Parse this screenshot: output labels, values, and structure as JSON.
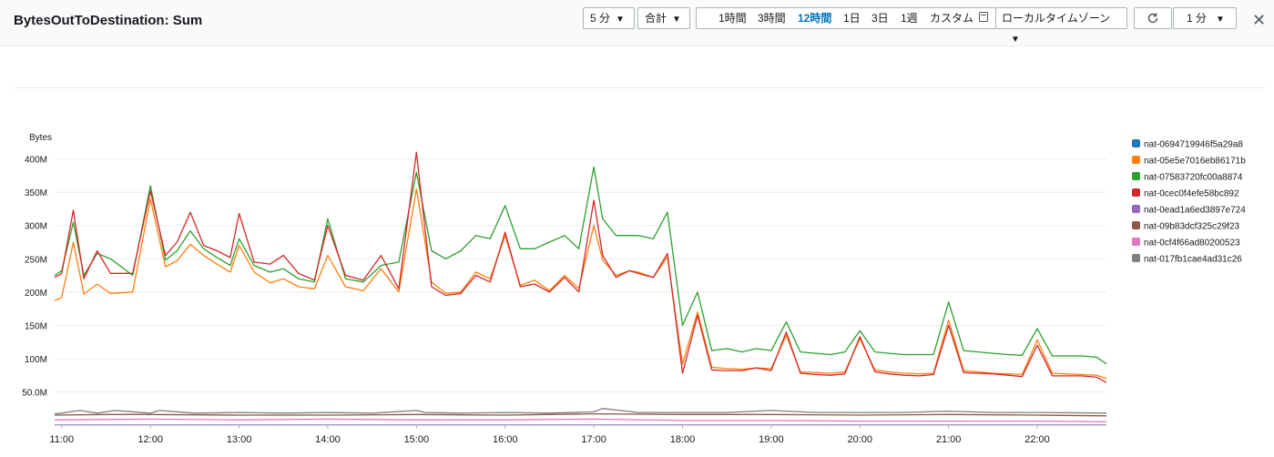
{
  "header": {
    "title": "BytesOutToDestination: Sum",
    "period": "5 分",
    "statistic": "合計",
    "ranges": [
      "1時間",
      "3時間",
      "12時間",
      "1日",
      "3日",
      "1週",
      "カスタム"
    ],
    "active_range": "12時間",
    "timezone": "ローカルタイムゾーン",
    "refresh_interval": "1 分"
  },
  "icons": {
    "refresh": "refresh-icon",
    "calendar": "calendar-icon",
    "close": "close-icon",
    "dropdown": "caret-down-icon"
  },
  "chart_data": {
    "type": "line",
    "ylabel": "Bytes",
    "ylim": [
      0,
      420
    ],
    "y_unit": "MB",
    "yticks": [
      50,
      100,
      150,
      200,
      250,
      300,
      350,
      400
    ],
    "ytick_labels": [
      "50.0M",
      "100M",
      "150M",
      "200M",
      "250M",
      "300M",
      "350M",
      "400M"
    ],
    "xlim": [
      10.92,
      22.78
    ],
    "x_unit": "hour of day",
    "xticks": [
      11,
      12,
      13,
      14,
      15,
      16,
      17,
      18,
      19,
      20,
      21,
      22
    ],
    "xtick_labels": [
      "11:00",
      "12:00",
      "13:00",
      "14:00",
      "15:00",
      "16:00",
      "17:00",
      "18:00",
      "19:00",
      "20:00",
      "21:00",
      "22:00"
    ],
    "grid": true,
    "legend_position": "right",
    "series": [
      {
        "name": "nat-0694719946f5a29a8",
        "color": "#1f77b4",
        "x": [
          10.92,
          22.78
        ],
        "y": [
          0.2,
          0.2
        ]
      },
      {
        "name": "nat-05e5e7016eb86171b",
        "color": "#ff7f0e",
        "x": [
          10.92,
          11.0,
          11.13,
          11.25,
          11.4,
          11.55,
          11.8,
          12.0,
          12.17,
          12.3,
          12.45,
          12.6,
          12.75,
          12.9,
          13.0,
          13.17,
          13.35,
          13.5,
          13.67,
          13.85,
          14.0,
          14.2,
          14.4,
          14.6,
          14.8,
          15.0,
          15.17,
          15.33,
          15.5,
          15.67,
          15.83,
          16.0,
          16.17,
          16.33,
          16.5,
          16.67,
          16.83,
          17.0,
          17.1,
          17.25,
          17.4,
          17.5,
          17.67,
          17.83,
          18.0,
          18.17,
          18.33,
          18.5,
          18.67,
          18.83,
          19.0,
          19.17,
          19.33,
          19.5,
          19.67,
          19.83,
          20.0,
          20.17,
          20.33,
          20.5,
          20.67,
          20.83,
          21.0,
          21.17,
          21.33,
          21.5,
          21.67,
          21.83,
          22.0,
          22.17,
          22.33,
          22.5,
          22.67,
          22.78
        ],
        "y": [
          187,
          192,
          275,
          197,
          212,
          198,
          200,
          340,
          238,
          247,
          272,
          255,
          242,
          230,
          270,
          230,
          214,
          220,
          208,
          205,
          255,
          208,
          202,
          235,
          200,
          355,
          215,
          198,
          200,
          230,
          220,
          285,
          210,
          218,
          202,
          225,
          205,
          300,
          248,
          225,
          232,
          230,
          222,
          253,
          92,
          170,
          87,
          85,
          84,
          86,
          85,
          135,
          80,
          79,
          78,
          80,
          130,
          83,
          80,
          78,
          77,
          78,
          158,
          82,
          80,
          78,
          77,
          76,
          128,
          78,
          77,
          76,
          75,
          70
        ]
      },
      {
        "name": "nat-07583720fc00a8874",
        "color": "#2ca02c",
        "x": [
          10.92,
          11.0,
          11.13,
          11.25,
          11.4,
          11.55,
          11.8,
          12.0,
          12.17,
          12.3,
          12.45,
          12.6,
          12.75,
          12.9,
          13.0,
          13.17,
          13.35,
          13.5,
          13.67,
          13.85,
          14.0,
          14.2,
          14.4,
          14.6,
          14.8,
          15.0,
          15.17,
          15.33,
          15.5,
          15.67,
          15.83,
          16.0,
          16.17,
          16.33,
          16.5,
          16.67,
          16.83,
          17.0,
          17.1,
          17.25,
          17.4,
          17.5,
          17.67,
          17.83,
          18.0,
          18.17,
          18.33,
          18.5,
          18.67,
          18.83,
          19.0,
          19.17,
          19.33,
          19.5,
          19.67,
          19.83,
          20.0,
          20.17,
          20.33,
          20.5,
          20.67,
          20.83,
          21.0,
          21.17,
          21.33,
          21.5,
          21.67,
          21.83,
          22.0,
          22.17,
          22.33,
          22.5,
          22.67,
          22.78
        ],
        "y": [
          225,
          232,
          305,
          225,
          258,
          250,
          225,
          360,
          248,
          262,
          292,
          265,
          252,
          240,
          280,
          240,
          230,
          235,
          220,
          215,
          310,
          220,
          215,
          240,
          245,
          380,
          262,
          250,
          262,
          285,
          280,
          330,
          265,
          265,
          275,
          285,
          265,
          388,
          310,
          285,
          285,
          285,
          280,
          320,
          150,
          200,
          112,
          115,
          110,
          115,
          112,
          155,
          110,
          108,
          106,
          110,
          142,
          110,
          108,
          106,
          106,
          106,
          185,
          112,
          110,
          108,
          106,
          105,
          145,
          104,
          104,
          104,
          102,
          92
        ]
      },
      {
        "name": "nat-0cec0f4efe58bc892",
        "color": "#d62728",
        "x": [
          10.92,
          11.0,
          11.13,
          11.25,
          11.4,
          11.55,
          11.8,
          12.0,
          12.17,
          12.3,
          12.45,
          12.6,
          12.75,
          12.9,
          13.0,
          13.17,
          13.35,
          13.5,
          13.67,
          13.85,
          14.0,
          14.2,
          14.4,
          14.6,
          14.8,
          15.0,
          15.17,
          15.33,
          15.5,
          15.67,
          15.83,
          16.0,
          16.17,
          16.33,
          16.5,
          16.67,
          16.83,
          17.0,
          17.1,
          17.25,
          17.4,
          17.5,
          17.67,
          17.83,
          18.0,
          18.17,
          18.33,
          18.5,
          18.67,
          18.83,
          19.0,
          19.17,
          19.33,
          19.5,
          19.67,
          19.83,
          20.0,
          20.17,
          20.33,
          20.5,
          20.67,
          20.83,
          21.0,
          21.17,
          21.33,
          21.5,
          21.67,
          21.83,
          22.0,
          22.17,
          22.33,
          22.5,
          22.67,
          22.78
        ],
        "y": [
          222,
          228,
          323,
          220,
          262,
          228,
          228,
          352,
          255,
          275,
          320,
          270,
          262,
          252,
          318,
          245,
          242,
          255,
          228,
          218,
          300,
          225,
          218,
          255,
          205,
          410,
          208,
          195,
          198,
          225,
          215,
          290,
          208,
          212,
          200,
          222,
          200,
          338,
          255,
          222,
          232,
          228,
          222,
          258,
          78,
          165,
          83,
          82,
          82,
          86,
          82,
          140,
          78,
          76,
          75,
          77,
          133,
          80,
          77,
          75,
          74,
          76,
          150,
          79,
          78,
          77,
          75,
          73,
          120,
          74,
          74,
          74,
          72,
          64
        ]
      },
      {
        "name": "nat-0ead1a6ed3897e724",
        "color": "#9467bd",
        "x": [
          10.92,
          22.78
        ],
        "y": [
          0.3,
          0.3
        ]
      },
      {
        "name": "nat-09b83dcf325c29f23",
        "color": "#8c564b",
        "x": [
          10.92,
          11.5,
          12.0,
          13.0,
          14.0,
          15.0,
          16.0,
          17.0,
          18.0,
          19.0,
          20.0,
          21.0,
          22.0,
          22.78
        ],
        "y": [
          15,
          16,
          16,
          15,
          15,
          16,
          15,
          17,
          16,
          16,
          15,
          16,
          15,
          14
        ]
      },
      {
        "name": "nat-0cf4f66ad80200523",
        "color": "#e377c2",
        "x": [
          10.92,
          12.0,
          13.0,
          14.0,
          15.0,
          16.0,
          17.0,
          18.0,
          19.0,
          20.0,
          21.0,
          22.0,
          22.78
        ],
        "y": [
          8,
          9,
          8,
          9,
          8,
          8,
          9,
          7,
          7,
          6,
          6,
          6,
          5
        ]
      },
      {
        "name": "nat-017fb1cae4ad31c26",
        "color": "#7f7f7f",
        "x": [
          10.92,
          11.0,
          11.2,
          11.4,
          11.6,
          12.0,
          12.1,
          12.5,
          13.0,
          13.5,
          14.0,
          14.5,
          15.0,
          15.1,
          15.5,
          16.0,
          16.5,
          17.0,
          17.1,
          17.5,
          18.0,
          18.5,
          19.0,
          19.5,
          20.0,
          20.5,
          21.0,
          21.5,
          22.0,
          22.78
        ],
        "y": [
          17,
          18,
          22,
          18,
          22,
          18,
          22,
          18,
          19,
          18,
          19,
          18,
          22,
          19,
          18,
          19,
          18,
          20,
          25,
          19,
          19,
          19,
          22,
          19,
          19,
          19,
          21,
          19,
          19,
          18
        ]
      }
    ]
  }
}
